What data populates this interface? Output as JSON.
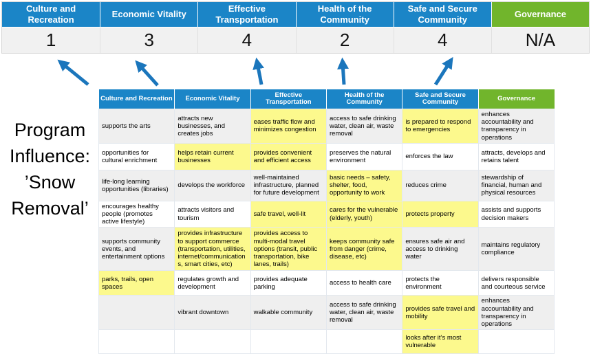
{
  "colors": {
    "header_blue": "#1b85c7",
    "header_green": "#71b52c",
    "arrow_blue": "#1b76bc",
    "highlight_yellow": "#fcf98d",
    "band_gray": "#efefef",
    "score_row_bg": "#f1f1f1"
  },
  "title_block": {
    "text": "Program Influence: ’Snow Removal’",
    "lines": [
      "Program",
      "Influence:",
      "’Snow",
      "Removal’"
    ]
  },
  "summary": {
    "columns": [
      {
        "label": "Culture and Recreation",
        "score": "1",
        "color": "blue"
      },
      {
        "label": "Economic Vitality",
        "score": "3",
        "color": "blue"
      },
      {
        "label": "Effective Transportation",
        "score": "4",
        "color": "blue"
      },
      {
        "label": "Health of the Community",
        "score": "2",
        "color": "blue"
      },
      {
        "label": "Safe and Secure Community",
        "score": "4",
        "color": "blue"
      },
      {
        "label": "Governance",
        "score": "N/A",
        "color": "green"
      }
    ]
  },
  "matrix": {
    "headers": [
      {
        "label": "Culture and Recreation",
        "color": "blue"
      },
      {
        "label": "Economic Vitality",
        "color": "blue"
      },
      {
        "label": "Effective Transportation",
        "color": "blue"
      },
      {
        "label": "Health of the Community",
        "color": "blue"
      },
      {
        "label": "Safe and Secure Community",
        "color": "blue"
      },
      {
        "label": "Governance",
        "color": "green"
      }
    ],
    "rows": [
      [
        {
          "text": "supports the arts",
          "highlight": false
        },
        {
          "text": "attracts new businesses, and creates jobs",
          "highlight": false
        },
        {
          "text": "eases traffic flow and minimizes congestion",
          "highlight": true
        },
        {
          "text": "access to safe drinking water, clean air, waste removal",
          "highlight": false
        },
        {
          "text": "is prepared to respond to emergencies",
          "highlight": true
        },
        {
          "text": "enhances accountability and transparency in operations",
          "highlight": false
        }
      ],
      [
        {
          "text": "opportunities for cultural enrichment",
          "highlight": false
        },
        {
          "text": "helps retain current businesses",
          "highlight": true
        },
        {
          "text": "provides convenient and efficient access",
          "highlight": true
        },
        {
          "text": "preserves the natural environment",
          "highlight": false
        },
        {
          "text": "enforces the law",
          "highlight": false
        },
        {
          "text": "attracts, develops and retains talent",
          "highlight": false
        }
      ],
      [
        {
          "text": "life-long learning opportunities (libraries)",
          "highlight": false
        },
        {
          "text": "develops the workforce",
          "highlight": false
        },
        {
          "text": "well-maintained infrastructure, planned for future development",
          "highlight": false
        },
        {
          "text": "basic needs – safety, shelter, food, opportunity to work",
          "highlight": true
        },
        {
          "text": "reduces crime",
          "highlight": false
        },
        {
          "text": "stewardship of financial, human and physical resources",
          "highlight": false
        }
      ],
      [
        {
          "text": "encourages healthy people (promotes active lifestyle)",
          "highlight": false
        },
        {
          "text": "attracts visitors and tourism",
          "highlight": false
        },
        {
          "text": "safe travel, well-lit",
          "highlight": true
        },
        {
          "text": "cares for the vulnerable (elderly, youth)",
          "highlight": true
        },
        {
          "text": "protects property",
          "highlight": true
        },
        {
          "text": "assists and supports decision makers",
          "highlight": false
        }
      ],
      [
        {
          "text": "supports community events, and entertainment options",
          "highlight": false
        },
        {
          "text": "provides infrastructure to support commerce (transportation, utilities, internet/communications, smart cities, etc)",
          "highlight": true
        },
        {
          "text": "provides access to multi-modal travel options (transit, public transportation, bike lanes, trails)",
          "highlight": true
        },
        {
          "text": "keeps community safe from danger (crime, disease, etc)",
          "highlight": true
        },
        {
          "text": "ensures safe air and access to drinking water",
          "highlight": false
        },
        {
          "text": "maintains regulatory compliance",
          "highlight": false
        }
      ],
      [
        {
          "text": "parks, trails, open spaces",
          "highlight": true
        },
        {
          "text": "regulates growth and development",
          "highlight": false
        },
        {
          "text": "provides adequate parking",
          "highlight": false
        },
        {
          "text": "access to health care",
          "highlight": false
        },
        {
          "text": "protects the environment",
          "highlight": false
        },
        {
          "text": "delivers responsible and courteous service",
          "highlight": false
        }
      ],
      [
        {
          "text": "",
          "highlight": false
        },
        {
          "text": "vibrant downtown",
          "highlight": false
        },
        {
          "text": "walkable community",
          "highlight": false
        },
        {
          "text": "access to safe drinking water, clean air, waste removal",
          "highlight": false
        },
        {
          "text": "provides safe travel and mobility",
          "highlight": true
        },
        {
          "text": "enhances accountability and transparency in operations",
          "highlight": false
        }
      ],
      [
        {
          "text": "",
          "highlight": false
        },
        {
          "text": "",
          "highlight": false
        },
        {
          "text": "",
          "highlight": false
        },
        {
          "text": "",
          "highlight": false
        },
        {
          "text": "looks after it’s most vulnerable",
          "highlight": true
        },
        {
          "text": "",
          "highlight": false
        }
      ]
    ]
  }
}
